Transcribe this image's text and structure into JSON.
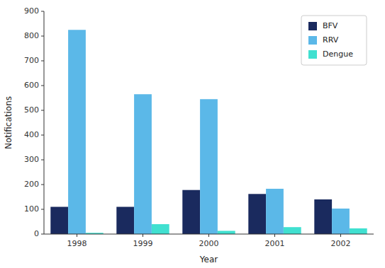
{
  "chart_data": {
    "type": "bar",
    "xlabel": "Year",
    "ylabel": "Notifications",
    "categories": [
      "1998",
      "1999",
      "2000",
      "2001",
      "2002"
    ],
    "series": [
      {
        "name": "BFV",
        "color": "#1a2a5e",
        "values": [
          110,
          110,
          178,
          162,
          140
        ]
      },
      {
        "name": "RRV",
        "color": "#5bb8e8",
        "values": [
          825,
          565,
          545,
          183,
          103
        ]
      },
      {
        "name": "Dengue",
        "color": "#40e0d0",
        "values": [
          5,
          40,
          13,
          28,
          23
        ]
      }
    ],
    "ylim": [
      0,
      900
    ],
    "yticks": [
      0,
      100,
      200,
      300,
      400,
      500,
      600,
      700,
      800,
      900
    ],
    "grid": false,
    "legend": "upper right"
  }
}
